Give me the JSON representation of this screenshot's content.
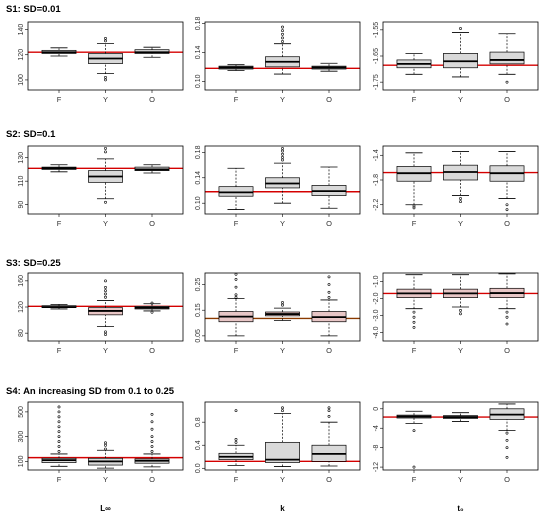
{
  "figure": {
    "column_labels": [
      "L∞",
      "k",
      "t₀"
    ],
    "rows": [
      {
        "title": "S1: SD=0.01"
      },
      {
        "title": "S2: SD=0.1"
      },
      {
        "title": "S3: SD=0.25"
      },
      {
        "title": "S4: An increasing SD from 0.1 to 0.25"
      }
    ]
  },
  "chart_data": [
    {
      "type": "box",
      "row": 0,
      "col": 0,
      "title": "S1: SD=0.01",
      "xlabel": "",
      "ylim": [
        92,
        146
      ],
      "yticks": [
        100,
        120,
        140
      ],
      "ref_line": 122,
      "ref_color": "#d40000",
      "fill": "#d9d9d9",
      "categories": [
        "F",
        "Y",
        "O"
      ],
      "boxes": [
        {
          "wlo": 119,
          "q1": 121,
          "med": 122,
          "q3": 123.5,
          "whi": 125.5,
          "out": []
        },
        {
          "wlo": 105,
          "q1": 113,
          "med": 117,
          "q3": 121,
          "whi": 129,
          "out": [
            100,
            102,
            131,
            133
          ]
        },
        {
          "wlo": 118,
          "q1": 121,
          "med": 122,
          "q3": 124,
          "whi": 126,
          "out": []
        }
      ]
    },
    {
      "type": "box",
      "row": 0,
      "col": 1,
      "title": "",
      "xlabel": "",
      "ylim": [
        0.088,
        0.182
      ],
      "yticks": [
        0.1,
        0.14,
        0.18
      ],
      "ytick_labels": [
        "0.10",
        "0.14",
        "0.18"
      ],
      "ref_line": 0.118,
      "ref_color": "#d40000",
      "fill": "#d9d9d9",
      "categories": [
        "F",
        "Y",
        "O"
      ],
      "boxes": [
        {
          "wlo": 0.115,
          "q1": 0.117,
          "med": 0.119,
          "q3": 0.121,
          "whi": 0.123,
          "out": []
        },
        {
          "wlo": 0.11,
          "q1": 0.12,
          "med": 0.127,
          "q3": 0.134,
          "whi": 0.152,
          "out": [
            0.155,
            0.16,
            0.165,
            0.17,
            0.175
          ]
        },
        {
          "wlo": 0.114,
          "q1": 0.117,
          "med": 0.119,
          "q3": 0.121,
          "whi": 0.125,
          "out": []
        }
      ]
    },
    {
      "type": "box",
      "row": 0,
      "col": 2,
      "title": "",
      "xlabel": "",
      "ylim": [
        -1.78,
        -1.52
      ],
      "yticks": [
        -1.75,
        -1.65,
        -1.55
      ],
      "ytick_labels": [
        "-1.75",
        "-1.65",
        "-1.55"
      ],
      "ref_line": -1.685,
      "ref_color": "#d40000",
      "fill": "#d9d9d9",
      "categories": [
        "F",
        "Y",
        "O"
      ],
      "boxes": [
        {
          "wlo": -1.72,
          "q1": -1.695,
          "med": -1.68,
          "q3": -1.665,
          "whi": -1.64,
          "out": []
        },
        {
          "wlo": -1.73,
          "q1": -1.695,
          "med": -1.67,
          "q3": -1.64,
          "whi": -1.56,
          "out": [
            -1.545
          ]
        },
        {
          "wlo": -1.72,
          "q1": -1.68,
          "med": -1.665,
          "q3": -1.635,
          "whi": -1.565,
          "out": [
            -1.75
          ]
        }
      ]
    },
    {
      "type": "box",
      "row": 1,
      "col": 0,
      "title": "S2: SD=0.1",
      "xlabel": "",
      "ylim": [
        82,
        140
      ],
      "yticks": [
        90,
        110,
        130
      ],
      "ref_line": 121,
      "ref_color": "#d40000",
      "fill": "#d9d9d9",
      "categories": [
        "F",
        "Y",
        "O"
      ],
      "boxes": [
        {
          "wlo": 118,
          "q1": 120,
          "med": 121,
          "q3": 122,
          "whi": 124,
          "out": []
        },
        {
          "wlo": 95,
          "q1": 109,
          "med": 114,
          "q3": 119,
          "whi": 129,
          "out": [
            92,
            135,
            138
          ]
        },
        {
          "wlo": 117,
          "q1": 119,
          "med": 120,
          "q3": 122,
          "whi": 124,
          "out": []
        }
      ]
    },
    {
      "type": "box",
      "row": 1,
      "col": 1,
      "title": "",
      "xlabel": "",
      "ylim": [
        0.083,
        0.19
      ],
      "yticks": [
        0.1,
        0.14,
        0.18
      ],
      "ytick_labels": [
        "0.10",
        "0.14",
        "0.18"
      ],
      "ref_line": 0.118,
      "ref_color": "#d40000",
      "fill": "#d9d9d9",
      "categories": [
        "F",
        "Y",
        "O"
      ],
      "boxes": [
        {
          "wlo": 0.09,
          "q1": 0.111,
          "med": 0.117,
          "q3": 0.126,
          "whi": 0.155,
          "out": []
        },
        {
          "wlo": 0.1,
          "q1": 0.124,
          "med": 0.131,
          "q3": 0.14,
          "whi": 0.163,
          "out": [
            0.168,
            0.172,
            0.177,
            0.182,
            0.186
          ]
        },
        {
          "wlo": 0.092,
          "q1": 0.112,
          "med": 0.119,
          "q3": 0.128,
          "whi": 0.157,
          "out": []
        }
      ]
    },
    {
      "type": "box",
      "row": 1,
      "col": 2,
      "title": "",
      "xlabel": "",
      "ylim": [
        -2.35,
        -1.25
      ],
      "yticks": [
        -2.2,
        -1.8,
        -1.4
      ],
      "ytick_labels": [
        "-2.2",
        "-1.8",
        "-1.4"
      ],
      "ref_line": -1.68,
      "ref_color": "#d40000",
      "fill": "#d9d9d9",
      "categories": [
        "F",
        "Y",
        "O"
      ],
      "boxes": [
        {
          "wlo": -2.2,
          "q1": -1.82,
          "med": -1.69,
          "q3": -1.58,
          "whi": -1.36,
          "out": [
            -2.22,
            -2.25
          ]
        },
        {
          "wlo": -2.05,
          "q1": -1.8,
          "med": -1.67,
          "q3": -1.56,
          "whi": -1.34,
          "out": [
            -2.1,
            -2.15
          ]
        },
        {
          "wlo": -2.1,
          "q1": -1.82,
          "med": -1.69,
          "q3": -1.57,
          "whi": -1.34,
          "out": [
            -2.2,
            -2.28
          ]
        }
      ]
    },
    {
      "type": "box",
      "row": 2,
      "col": 0,
      "title": "S3: SD=0.25",
      "xlabel": "",
      "ylim": [
        68,
        172
      ],
      "yticks": [
        80,
        120,
        160
      ],
      "ref_line": 121,
      "ref_color": "#d40000",
      "fill": "#e8c6c6",
      "categories": [
        "F",
        "Y",
        "O"
      ],
      "boxes": [
        {
          "wlo": 117,
          "q1": 119,
          "med": 120,
          "q3": 122,
          "whi": 124,
          "out": []
        },
        {
          "wlo": 90,
          "q1": 108,
          "med": 114,
          "q3": 119,
          "whi": 130,
          "out": [
            78,
            82,
            135,
            140,
            145,
            150,
            160
          ]
        },
        {
          "wlo": 114,
          "q1": 117,
          "med": 119,
          "q3": 121,
          "whi": 125,
          "out": [
            112,
            126
          ]
        }
      ]
    },
    {
      "type": "box",
      "row": 2,
      "col": 1,
      "title": "",
      "xlabel": "",
      "ylim": [
        0.03,
        0.295
      ],
      "yticks": [
        0.05,
        0.15,
        0.25
      ],
      "ytick_labels": [
        "0.05",
        "0.15",
        "0.25"
      ],
      "ref_line": 0.118,
      "ref_color": "#8a3a00",
      "fill": "#e8c6c6",
      "categories": [
        "F",
        "Y",
        "O"
      ],
      "boxes": [
        {
          "wlo": 0.05,
          "q1": 0.105,
          "med": 0.125,
          "q3": 0.145,
          "whi": 0.195,
          "out": [
            0.2,
            0.21,
            0.24,
            0.27,
            0.29
          ]
        },
        {
          "wlo": 0.11,
          "q1": 0.128,
          "med": 0.135,
          "q3": 0.143,
          "whi": 0.158,
          "out": [
            0.17,
            0.18
          ]
        },
        {
          "wlo": 0.05,
          "q1": 0.105,
          "med": 0.123,
          "q3": 0.145,
          "whi": 0.19,
          "out": [
            0.2,
            0.22,
            0.25,
            0.28
          ]
        }
      ]
    },
    {
      "type": "box",
      "row": 2,
      "col": 2,
      "title": "",
      "xlabel": "",
      "ylim": [
        -4.5,
        -0.5
      ],
      "yticks": [
        -4.0,
        -3.0,
        -2.0,
        -1.0
      ],
      "ytick_labels": [
        "-4.0",
        "-3.0",
        "-2.0",
        "-1.0"
      ],
      "ref_line": -1.7,
      "ref_color": "#d40000",
      "fill": "#e8c6c6",
      "categories": [
        "F",
        "Y",
        "O"
      ],
      "boxes": [
        {
          "wlo": -2.6,
          "q1": -1.95,
          "med": -1.7,
          "q3": -1.45,
          "whi": -0.6,
          "out": [
            -2.8,
            -3.1,
            -3.4,
            -3.7
          ]
        },
        {
          "wlo": -2.5,
          "q1": -1.95,
          "med": -1.7,
          "q3": -1.45,
          "whi": -0.6,
          "out": [
            -2.7,
            -2.9
          ]
        },
        {
          "wlo": -2.6,
          "q1": -1.95,
          "med": -1.68,
          "q3": -1.4,
          "whi": -0.55,
          "out": [
            -2.8,
            -3.1,
            -3.5
          ]
        }
      ]
    },
    {
      "type": "box",
      "row": 3,
      "col": 0,
      "title": "S4: An increasing SD from 0.1 to 0.25",
      "xlabel": "",
      "ylim": [
        30,
        580
      ],
      "yticks": [
        100,
        300,
        500
      ],
      "ref_line": 130,
      "ref_color": "#d40000",
      "fill": "#d9d9d9",
      "categories": [
        "F",
        "Y",
        "O"
      ],
      "boxes": [
        {
          "wlo": 60,
          "q1": 90,
          "med": 110,
          "q3": 125,
          "whi": 160,
          "out": [
            180,
            220,
            260,
            300,
            340,
            380,
            420,
            460,
            500,
            540
          ]
        },
        {
          "wlo": 45,
          "q1": 70,
          "med": 100,
          "q3": 125,
          "whi": 190,
          "out": [
            200,
            230,
            250
          ]
        },
        {
          "wlo": 55,
          "q1": 85,
          "med": 105,
          "q3": 120,
          "whi": 160,
          "out": [
            180,
            220,
            260,
            300,
            360,
            420,
            480
          ]
        }
      ]
    },
    {
      "type": "box",
      "row": 3,
      "col": 1,
      "title": "",
      "xlabel": "",
      "ylim": [
        -0.03,
        1.15
      ],
      "yticks": [
        0.0,
        0.4,
        0.8
      ],
      "ytick_labels": [
        "0.0",
        "0.4",
        "0.8"
      ],
      "ref_line": 0.12,
      "ref_color": "#d40000",
      "fill": "#d9d9d9",
      "categories": [
        "F",
        "Y",
        "O"
      ],
      "boxes": [
        {
          "wlo": 0.05,
          "q1": 0.15,
          "med": 0.2,
          "q3": 0.26,
          "whi": 0.4,
          "out": [
            0.45,
            0.5,
            1.0
          ]
        },
        {
          "wlo": 0.03,
          "q1": 0.1,
          "med": 0.15,
          "q3": 0.45,
          "whi": 0.95,
          "out": [
            1.0,
            1.05
          ]
        },
        {
          "wlo": 0.04,
          "q1": 0.12,
          "med": 0.25,
          "q3": 0.4,
          "whi": 0.8,
          "out": [
            0.9,
            1.0,
            1.05
          ]
        }
      ]
    },
    {
      "type": "box",
      "row": 3,
      "col": 2,
      "title": "",
      "xlabel": "",
      "ylim": [
        -12.6,
        1.4
      ],
      "yticks": [
        -12,
        -8,
        -4,
        0
      ],
      "ytick_labels": [
        "-12",
        "-8",
        "-4",
        "0"
      ],
      "ref_line": -1.7,
      "ref_color": "#d40000",
      "fill": "#d9d9d9",
      "categories": [
        "F",
        "Y",
        "O"
      ],
      "boxes": [
        {
          "wlo": -3.0,
          "q1": -1.9,
          "med": -1.6,
          "q3": -1.3,
          "whi": -0.5,
          "out": [
            -4.5,
            -12.0
          ]
        },
        {
          "wlo": -2.6,
          "q1": -2.0,
          "med": -1.7,
          "q3": -1.4,
          "whi": -0.8,
          "out": []
        },
        {
          "wlo": -4.5,
          "q1": -2.2,
          "med": -1.2,
          "q3": 0.0,
          "whi": 1.0,
          "out": [
            -5.0,
            -6.5,
            -8.0,
            -10.0
          ]
        }
      ]
    }
  ]
}
